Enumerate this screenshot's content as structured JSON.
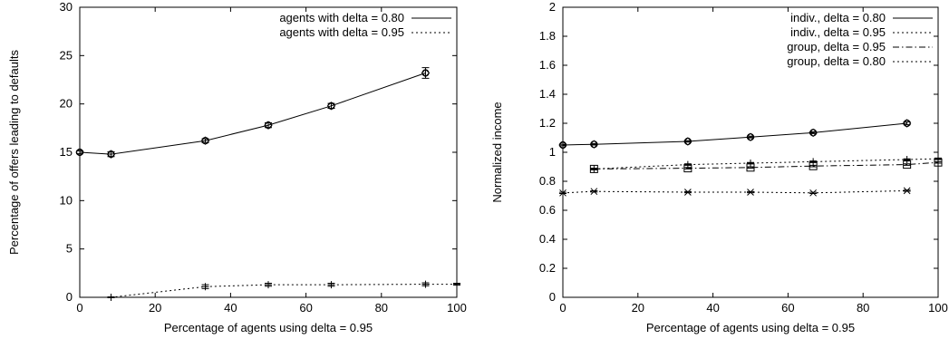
{
  "chart_data": [
    {
      "type": "line",
      "xlabel": "Percentage of agents using delta = 0.95",
      "ylabel": "Percentage of offers leading to defaults",
      "xlim": [
        0,
        100
      ],
      "ylim": [
        0,
        30
      ],
      "xticks": [
        0,
        20,
        40,
        60,
        80,
        100
      ],
      "yticks": [
        0,
        5,
        10,
        15,
        20,
        25,
        30
      ],
      "legend_position": "top-right",
      "grid": false,
      "series": [
        {
          "name": "agents with delta = 0.80",
          "style": "solid",
          "marker": "diamond-circle",
          "x": [
            0,
            8.3,
            33.3,
            50,
            66.7,
            91.7
          ],
          "y": [
            15.0,
            14.8,
            16.2,
            17.8,
            19.8,
            23.2
          ],
          "error": [
            0.15,
            0.25,
            0.2,
            0.25,
            0.25,
            0.55
          ]
        },
        {
          "name": "agents with delta = 0.95",
          "style": "dotted",
          "marker": "plus",
          "x": [
            8.3,
            33.3,
            50,
            66.7,
            91.7,
            100
          ],
          "y": [
            0.0,
            1.1,
            1.3,
            1.3,
            1.35,
            1.35
          ],
          "error": [
            0.05,
            0.2,
            0.15,
            0.15,
            0.15,
            0.1
          ]
        }
      ]
    },
    {
      "type": "line",
      "xlabel": "Percentage of agents using delta = 0.95",
      "ylabel": "Normalized income",
      "xlim": [
        0,
        100
      ],
      "ylim": [
        0,
        2
      ],
      "xticks": [
        0,
        20,
        40,
        60,
        80,
        100
      ],
      "yticks": [
        "0",
        "0.2",
        "0.4",
        "0.6",
        "0.8",
        "1",
        "1.2",
        "1.4",
        "1.6",
        "1.8",
        "2"
      ],
      "legend_position": "top-right",
      "grid": false,
      "series": [
        {
          "name": "indiv., delta = 0.80",
          "style": "solid",
          "marker": "diamond-circle",
          "x": [
            0,
            8.3,
            33.3,
            50,
            66.7,
            91.7
          ],
          "y": [
            1.05,
            1.055,
            1.075,
            1.105,
            1.135,
            1.2
          ],
          "error": [
            0.005,
            0.005,
            0.005,
            0.006,
            0.006,
            0.01
          ]
        },
        {
          "name": "indiv., delta = 0.95",
          "style": "dotted",
          "marker": "plus",
          "x": [
            8.3,
            33.3,
            50,
            66.7,
            91.7,
            100
          ],
          "y": [
            0.885,
            0.915,
            0.925,
            0.935,
            0.95,
            0.955
          ],
          "error": [
            0.005,
            0.005,
            0.005,
            0.005,
            0.005,
            0.005
          ]
        },
        {
          "name": "group, delta = 0.95",
          "style": "dashdot",
          "marker": "square",
          "x": [
            8.3,
            33.3,
            50,
            66.7,
            91.7,
            100
          ],
          "y": [
            0.885,
            0.89,
            0.895,
            0.905,
            0.915,
            0.93
          ],
          "error": [
            0.005,
            0.005,
            0.005,
            0.005,
            0.005,
            0.005
          ]
        },
        {
          "name": "group, delta = 0.80",
          "style": "dotted",
          "marker": "cross",
          "x": [
            0,
            8.3,
            33.3,
            50,
            66.7,
            91.7
          ],
          "y": [
            0.72,
            0.73,
            0.725,
            0.725,
            0.72,
            0.735
          ],
          "error": [
            0.004,
            0.004,
            0.004,
            0.004,
            0.004,
            0.004
          ]
        }
      ]
    }
  ]
}
